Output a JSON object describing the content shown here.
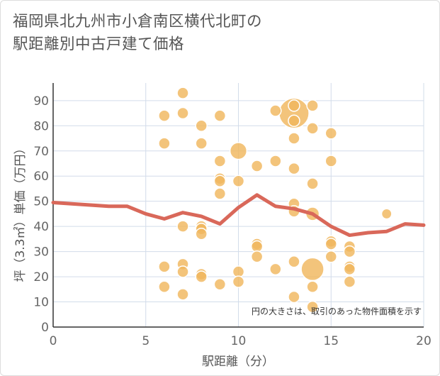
{
  "title_lines": [
    "福岡県北九州市小倉南区横代北町の",
    "駅距離別中古戸建て価格"
  ],
  "chart_data": {
    "type": "scatter",
    "title": "福岡県北九州市小倉南区横代北町の駅距離別中古戸建て価格",
    "xlabel": "駅距離（分）",
    "ylabel": "坪（3.3㎡）単価（万円）",
    "xlim": [
      0,
      20
    ],
    "ylim": [
      0,
      97
    ],
    "xticks": [
      0,
      5,
      10,
      15,
      20
    ],
    "yticks": [
      0,
      10,
      20,
      30,
      40,
      50,
      60,
      70,
      80,
      90
    ],
    "note": "円の大きさは、取引のあった物件面積を示す",
    "bubble_color": "#f0b75e",
    "line_color": "#d9685a",
    "points": [
      {
        "x": 6,
        "y": 84,
        "s": 1
      },
      {
        "x": 6,
        "y": 73,
        "s": 1
      },
      {
        "x": 6,
        "y": 24,
        "s": 1
      },
      {
        "x": 6,
        "y": 16,
        "s": 1
      },
      {
        "x": 7,
        "y": 93,
        "s": 1
      },
      {
        "x": 7,
        "y": 85,
        "s": 1
      },
      {
        "x": 7,
        "y": 40,
        "s": 1
      },
      {
        "x": 7,
        "y": 25,
        "s": 1
      },
      {
        "x": 7,
        "y": 22,
        "s": 1
      },
      {
        "x": 7,
        "y": 13,
        "s": 1
      },
      {
        "x": 8,
        "y": 80,
        "s": 1
      },
      {
        "x": 8,
        "y": 73,
        "s": 1
      },
      {
        "x": 8,
        "y": 40,
        "s": 1
      },
      {
        "x": 8,
        "y": 39,
        "s": 1
      },
      {
        "x": 8,
        "y": 37,
        "s": 1
      },
      {
        "x": 8,
        "y": 21,
        "s": 1
      },
      {
        "x": 8,
        "y": 20,
        "s": 1
      },
      {
        "x": 9,
        "y": 84,
        "s": 1
      },
      {
        "x": 9,
        "y": 66,
        "s": 1
      },
      {
        "x": 9,
        "y": 59,
        "s": 1
      },
      {
        "x": 9,
        "y": 58,
        "s": 1
      },
      {
        "x": 9,
        "y": 53,
        "s": 1
      },
      {
        "x": 9,
        "y": 17,
        "s": 1
      },
      {
        "x": 10,
        "y": 70,
        "s": 2.2
      },
      {
        "x": 10,
        "y": 58,
        "s": 1
      },
      {
        "x": 10,
        "y": 22,
        "s": 1
      },
      {
        "x": 10,
        "y": 18,
        "s": 1
      },
      {
        "x": 11,
        "y": 64,
        "s": 1
      },
      {
        "x": 11,
        "y": 33,
        "s": 1
      },
      {
        "x": 11,
        "y": 32,
        "s": 1
      },
      {
        "x": 11,
        "y": 28,
        "s": 1
      },
      {
        "x": 12,
        "y": 86,
        "s": 1
      },
      {
        "x": 12,
        "y": 66,
        "s": 1
      },
      {
        "x": 12,
        "y": 23,
        "s": 1
      },
      {
        "x": 13,
        "y": 88,
        "s": 1
      },
      {
        "x": 13,
        "y": 85,
        "s": 7
      },
      {
        "x": 13,
        "y": 82,
        "s": 1
      },
      {
        "x": 13,
        "y": 75,
        "s": 1
      },
      {
        "x": 13,
        "y": 63,
        "s": 1
      },
      {
        "x": 13,
        "y": 49,
        "s": 1
      },
      {
        "x": 13,
        "y": 46,
        "s": 1
      },
      {
        "x": 13,
        "y": 26,
        "s": 1
      },
      {
        "x": 13,
        "y": 12,
        "s": 1
      },
      {
        "x": 14,
        "y": 88,
        "s": 1
      },
      {
        "x": 14,
        "y": 79,
        "s": 1
      },
      {
        "x": 14,
        "y": 57,
        "s": 1
      },
      {
        "x": 14,
        "y": 45,
        "s": 1.4
      },
      {
        "x": 14,
        "y": 23,
        "s": 4
      },
      {
        "x": 14,
        "y": 16,
        "s": 1
      },
      {
        "x": 14,
        "y": 8,
        "s": 1
      },
      {
        "x": 15,
        "y": 77,
        "s": 1
      },
      {
        "x": 15,
        "y": 66,
        "s": 1
      },
      {
        "x": 15,
        "y": 34,
        "s": 1
      },
      {
        "x": 15,
        "y": 33,
        "s": 1
      },
      {
        "x": 15,
        "y": 28,
        "s": 1
      },
      {
        "x": 16,
        "y": 32,
        "s": 1
      },
      {
        "x": 16,
        "y": 30,
        "s": 1
      },
      {
        "x": 16,
        "y": 24,
        "s": 1
      },
      {
        "x": 16,
        "y": 23,
        "s": 1
      },
      {
        "x": 16,
        "y": 18,
        "s": 1
      },
      {
        "x": 18,
        "y": 45,
        "s": 0.8
      }
    ],
    "trend_line": {
      "x": [
        0,
        1,
        2,
        3,
        4,
        5,
        6,
        7,
        8,
        9,
        10,
        11,
        12,
        13,
        14,
        15,
        16,
        17,
        18,
        19,
        20
      ],
      "y": [
        49.5,
        49,
        48.5,
        48,
        48,
        45,
        43,
        45.5,
        44,
        41,
        47.5,
        52.5,
        48,
        47,
        45,
        40,
        36.5,
        37.5,
        38,
        41,
        40.5
      ]
    }
  }
}
